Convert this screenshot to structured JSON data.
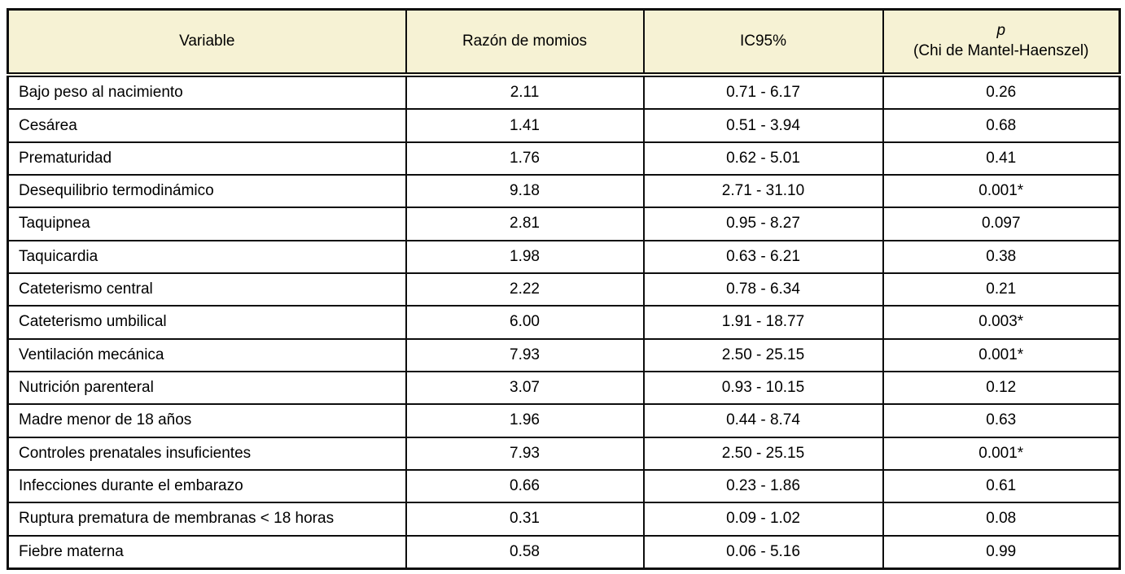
{
  "colors": {
    "header_background": "#f6f2d4",
    "border": "#0d0d0d",
    "row_background": "#ffffff",
    "text": "#000000"
  },
  "header": {
    "variable": "Variable",
    "odds_ratio": "Razón de momios",
    "ci": "IC95%",
    "p_line1": "p",
    "p_line2": "(Chi de Mantel-Haenszel)"
  },
  "rows": [
    {
      "variable": "Bajo peso al nacimiento",
      "odds_ratio": "2.11",
      "ci": "0.71 - 6.17",
      "p": "0.26"
    },
    {
      "variable": "Cesárea",
      "odds_ratio": "1.41",
      "ci": "0.51 - 3.94",
      "p": "0.68"
    },
    {
      "variable": "Prematuridad",
      "odds_ratio": "1.76",
      "ci": "0.62 - 5.01",
      "p": "0.41"
    },
    {
      "variable": "Desequilibrio termodinámico",
      "odds_ratio": "9.18",
      "ci": "2.71 - 31.10",
      "p": "0.001*"
    },
    {
      "variable": "Taquipnea",
      "odds_ratio": "2.81",
      "ci": "0.95 - 8.27",
      "p": "0.097"
    },
    {
      "variable": "Taquicardia",
      "odds_ratio": "1.98",
      "ci": "0.63 - 6.21",
      "p": "0.38"
    },
    {
      "variable": "Cateterismo central",
      "odds_ratio": "2.22",
      "ci": "0.78 - 6.34",
      "p": "0.21"
    },
    {
      "variable": "Cateterismo umbilical",
      "odds_ratio": "6.00",
      "ci": "1.91 - 18.77",
      "p": "0.003*"
    },
    {
      "variable": "Ventilación mecánica",
      "odds_ratio": "7.93",
      "ci": "2.50 - 25.15",
      "p": "0.001*"
    },
    {
      "variable": "Nutrición parenteral",
      "odds_ratio": "3.07",
      "ci": "0.93 - 10.15",
      "p": "0.12"
    },
    {
      "variable": "Madre menor de 18 años",
      "odds_ratio": "1.96",
      "ci": "0.44 - 8.74",
      "p": "0.63"
    },
    {
      "variable": "Controles prenatales insuficientes",
      "odds_ratio": "7.93",
      "ci": "2.50 - 25.15",
      "p": "0.001*"
    },
    {
      "variable": "Infecciones durante el embarazo",
      "odds_ratio": "0.66",
      "ci": "0.23 - 1.86",
      "p": "0.61"
    },
    {
      "variable": "Ruptura prematura de membranas < 18 horas",
      "odds_ratio": "0.31",
      "ci": "0.09 - 1.02",
      "p": "0.08"
    },
    {
      "variable": "Fiebre materna",
      "odds_ratio": "0.58",
      "ci": "0.06 - 5.16",
      "p": "0.99"
    }
  ],
  "chart_data": {
    "type": "table",
    "title": "",
    "columns": [
      "Variable",
      "Razón de momios",
      "IC95%",
      "p (Chi de Mantel-Haenszel)"
    ],
    "rows": [
      [
        "Bajo peso al nacimiento",
        2.11,
        "0.71 - 6.17",
        "0.26"
      ],
      [
        "Cesárea",
        1.41,
        "0.51 - 3.94",
        "0.68"
      ],
      [
        "Prematuridad",
        1.76,
        "0.62 - 5.01",
        "0.41"
      ],
      [
        "Desequilibrio termodinámico",
        9.18,
        "2.71 - 31.10",
        "0.001*"
      ],
      [
        "Taquipnea",
        2.81,
        "0.95 - 8.27",
        "0.097"
      ],
      [
        "Taquicardia",
        1.98,
        "0.63 - 6.21",
        "0.38"
      ],
      [
        "Cateterismo central",
        2.22,
        "0.78 - 6.34",
        "0.21"
      ],
      [
        "Cateterismo umbilical",
        6.0,
        "1.91 - 18.77",
        "0.003*"
      ],
      [
        "Ventilación mecánica",
        7.93,
        "2.50 - 25.15",
        "0.001*"
      ],
      [
        "Nutrición parenteral",
        3.07,
        "0.93 - 10.15",
        "0.12"
      ],
      [
        "Madre menor de 18 años",
        1.96,
        "0.44 - 8.74",
        "0.63"
      ],
      [
        "Controles prenatales insuficientes",
        7.93,
        "2.50 - 25.15",
        "0.001*"
      ],
      [
        "Infecciones durante el embarazo",
        0.66,
        "0.23 - 1.86",
        "0.61"
      ],
      [
        "Ruptura prematura de membranas < 18 horas",
        0.31,
        "0.09 - 1.02",
        "0.08"
      ],
      [
        "Fiebre materna",
        0.58,
        "0.06 - 5.16",
        "0.99"
      ]
    ]
  }
}
